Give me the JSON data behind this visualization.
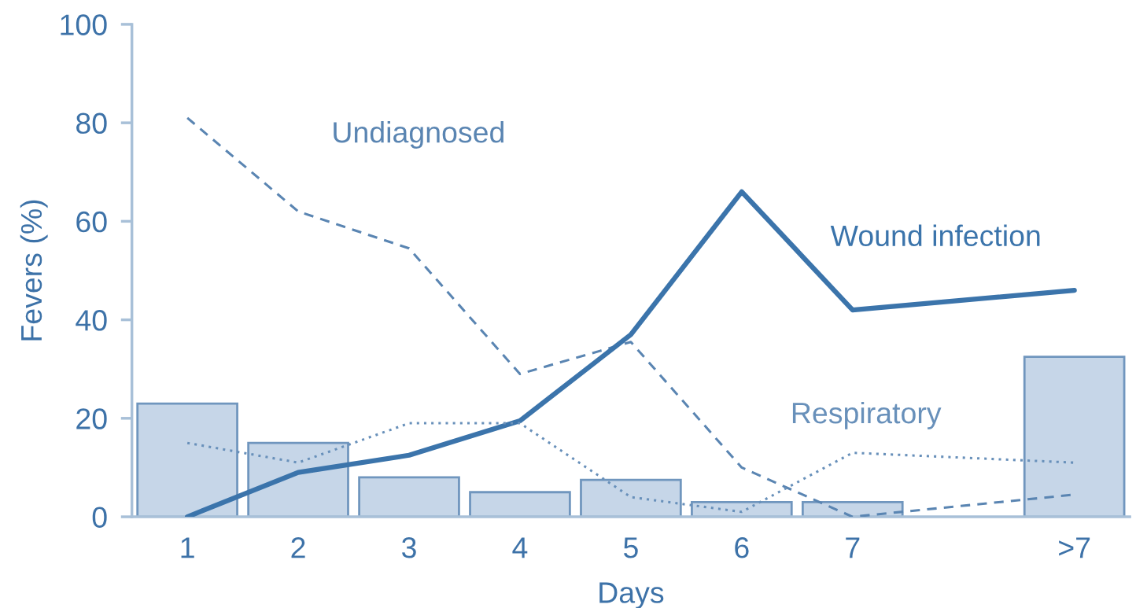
{
  "chart_data": {
    "type": "bar",
    "xlabel": "Days",
    "ylabel": "Fevers (%)",
    "categories": [
      "1",
      "2",
      "3",
      "4",
      "5",
      "6",
      "7",
      null,
      ">7"
    ],
    "ylim": [
      0,
      100
    ],
    "yticks": [
      0,
      20,
      40,
      60,
      80,
      100
    ],
    "grid": false,
    "legend": false,
    "series": [
      {
        "color": "#c6d6e8",
        "values": [
          23,
          15,
          8,
          5,
          7.5,
          3,
          3,
          null,
          32.5
        ]
      },
      {
        "type": "line",
        "name": "Undiagnosed",
        "color": "#5a85b2",
        "line_style": "dashed",
        "values": [
          81,
          62,
          54.5,
          29,
          35.5,
          10,
          0,
          null,
          4.5
        ]
      },
      {
        "type": "line",
        "name": "Wound infection",
        "color": "#3b74ab",
        "line_style": "solid",
        "values": [
          0,
          9,
          12.5,
          19.5,
          37,
          66,
          42,
          null,
          46
        ]
      },
      {
        "type": "line",
        "name": "Respiratory",
        "color": "#6890ba",
        "line_style": "dotted",
        "values": [
          15,
          11,
          19,
          19,
          4,
          1,
          13,
          null,
          11
        ]
      }
    ]
  }
}
